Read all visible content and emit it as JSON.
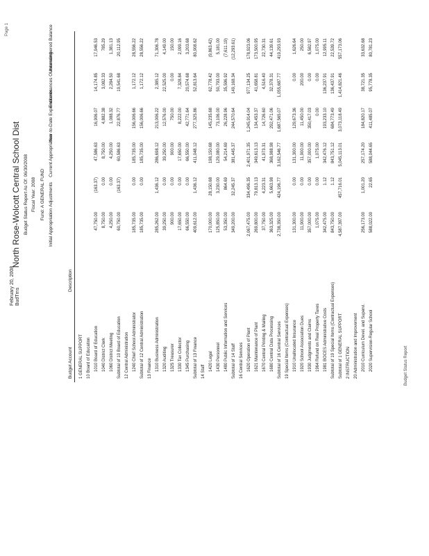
{
  "header": {
    "date": "February 20, 2008",
    "user": "BudTrns",
    "title": "North Rose-Wolcott Central School Dist",
    "subtitle": "Budget Status Report As Of: 06/30/2008",
    "fiscal_year": "Fiscal Year: 2008",
    "fund": "Fund: A GENERAL FUND",
    "page": "Page 1"
  },
  "columns": {
    "account": "Budget Account",
    "description": "Description",
    "values": [
      "Initial Appropriation",
      "Adjustments",
      "Current Appropriation",
      "Year-to-Date Expenditures",
      "Encumbrances Outstanding",
      "Unencumbered Balance"
    ]
  },
  "rows": [
    {
      "label": "1 GENERAL SUPPORT",
      "level": 0,
      "values": [
        "",
        "",
        "",
        "",
        "",
        ""
      ]
    },
    {
      "label": "10 Board of Education",
      "level": 0,
      "values": [
        "",
        "",
        "",
        "",
        "",
        ""
      ]
    },
    {
      "label": "1010 Board of Education",
      "level": 1,
      "values": [
        "47,750.00",
        "(163.37)",
        "47,586.63",
        "16,906.07",
        "14,174.85",
        "17,946.53"
      ]
    },
    {
      "label": "1040 District Clerk",
      "level": 1,
      "values": [
        "8,750.00",
        "0.00",
        "8,750.00",
        "4,882.38",
        "3,082.33",
        "785.29"
      ]
    },
    {
      "label": "1060 District Meeting",
      "level": 1,
      "values": [
        "4,250.00",
        "0.00",
        "4,250.00",
        "1,088.32",
        "2,284.50",
        "1,381.13"
      ]
    },
    {
      "label": "Subtotal of 10 Board of Education",
      "level": 0,
      "values": [
        "60,750.00",
        "(163.37)",
        "60,586.63",
        "22,876.77",
        "19,541.68",
        "20,112.95"
      ]
    },
    {
      "label": "12 Central Administration",
      "level": 0,
      "values": [
        "",
        "",
        "",
        "",
        "",
        ""
      ]
    },
    {
      "label": "1240 Chief School Administrator",
      "level": 1,
      "values": [
        "185,735.00",
        "0.00",
        "185,735.00",
        "156,006.66",
        "1,172.12",
        "28,556.22"
      ]
    },
    {
      "label": "Subtotal of 12 Central Administration",
      "level": 0,
      "values": [
        "185,735.00",
        "0.00",
        "185,735.00",
        "156,006.66",
        "1,172.12",
        "28,556.22"
      ]
    },
    {
      "label": "13 Finance",
      "level": 0,
      "values": [
        "",
        "",
        "",
        "",
        "",
        ""
      ]
    },
    {
      "label": "1310 Business Administration",
      "level": 1,
      "values": [
        "285,262.00",
        "1,436.12",
        "286,698.12",
        "213,006.22",
        "2,385.12",
        "71,306.78"
      ]
    },
    {
      "label": "1320 Auditing",
      "level": 1,
      "values": [
        "39,250.00",
        "0.00",
        "39,250.00",
        "12,576.00",
        "22,525.00",
        "4,149.00"
      ]
    },
    {
      "label": "1325 Treasurer",
      "level": 1,
      "values": [
        "900.00",
        "0.00",
        "900.00",
        "750.00",
        "0.00",
        "150.00"
      ]
    },
    {
      "label": "1330 Tax Collector",
      "level": 1,
      "values": [
        "17,650.00",
        "0.00",
        "17,650.00",
        "8,222.00",
        "7,328.84",
        "2,099.16"
      ]
    },
    {
      "label": "1345 Purchasing",
      "level": 1,
      "values": [
        "66,550.00",
        "0.00",
        "66,550.00",
        "42,771.64",
        "20,574.68",
        "3,203.68"
      ]
    },
    {
      "label": "Subtotal of 13 Finance",
      "level": 0,
      "values": [
        "409,612.00",
        "1,436.12",
        "411,048.12",
        "277,325.86",
        "52,813.64",
        "80,908.62"
      ]
    },
    {
      "label": "14 Staff",
      "level": 0,
      "values": [
        "",
        "",
        "",
        "",
        "",
        ""
      ]
    },
    {
      "label": "1420 Legal",
      "level": 1,
      "values": [
        "170,000.00",
        "28,150.68",
        "198,150.68",
        "145,235.68",
        "62,778.42",
        "(9,863.42)"
      ]
    },
    {
      "label": "1430 Personnel",
      "level": 1,
      "values": [
        "125,850.00",
        "3,230.00",
        "129,080.00",
        "73,106.00",
        "50,793.00",
        "5,181.00"
      ]
    },
    {
      "label": "1480 Public Information and Services",
      "level": 1,
      "values": [
        "53,350.00",
        "864.69",
        "54,214.69",
        "26,228.96",
        "35,596.92",
        "(7,611.19)"
      ]
    },
    {
      "label": "Subtotal of 14 Staff",
      "level": 0,
      "values": [
        "349,200.00",
        "32,245.37",
        "381,445.37",
        "244,570.64",
        "149,168.34",
        "(12,293.61)"
      ]
    },
    {
      "label": "16 Central Services",
      "level": 0,
      "values": [
        "",
        "",
        "",
        "",
        "",
        ""
      ]
    },
    {
      "label": "1620 Operation of Plant",
      "level": 1,
      "values": [
        "2,067,475.00",
        "334,496.35",
        "2,401,971.35",
        "1,245,914.04",
        "977,134.25",
        "178,923.06"
      ]
    },
    {
      "label": "1621 Maintenance of Plant",
      "level": 1,
      "values": [
        "269,800.00",
        "79,813.13",
        "349,613.13",
        "134,453.37",
        "41,658.81",
        "173,500.95"
      ]
    },
    {
      "label": "1670 Central Printing & Mailing",
      "level": 1,
      "values": [
        "37,750.00",
        "4,223.31",
        "41,973.31",
        "14,726.60",
        "4,516.40",
        "22,730.31"
      ]
    },
    {
      "label": "1680 Central Data Processing",
      "level": 1,
      "values": [
        "363,325.00",
        "5,663.98",
        "368,988.98",
        "292,471.06",
        "32,378.31",
        "44,139.61"
      ]
    },
    {
      "label": "Subtotal of 16 Central Services",
      "level": 0,
      "values": [
        "2,738,350.00",
        "424,196.77",
        "3,162,546.77",
        "1,687,565.07",
        "1,055,687.77",
        "419,293.93"
      ]
    },
    {
      "label": "19 Special Items (Contractual Expenses)",
      "level": 0,
      "values": [
        "",
        "",
        "",
        "",
        "",
        ""
      ]
    },
    {
      "label": "1910 Unallocated Insurance",
      "level": 1,
      "values": [
        "131,300.00",
        "0.00",
        "131,300.00",
        "129,673.36",
        "0.00",
        "1,626.64"
      ]
    },
    {
      "label": "1920 School Association Dues",
      "level": 1,
      "values": [
        "11,900.00",
        "0.00",
        "11,900.00",
        "11,450.00",
        "200.00",
        "250.00"
      ]
    },
    {
      "label": "1930 Judgments and Claims",
      "level": 1,
      "values": [
        "357,000.00",
        "0.00",
        "357,000.00",
        "350,417.03",
        "0.00",
        "6,582.97"
      ]
    },
    {
      "label": "1964 Refund on Real Property Taxes",
      "level": 1,
      "values": [
        "1,075.00",
        "0.00",
        "1,075.00",
        "0.00",
        "0.00",
        "1,075.00"
      ]
    },
    {
      "label": "1981 BOCES Administrative Costs",
      "level": 1,
      "values": [
        "342,475.00",
        "1.12",
        "342,476.12",
        "193,233.10",
        "136,237.91",
        "12,995.11"
      ]
    },
    {
      "label": "Subtotal of 19 Special Items (Contractual Expenses)",
      "level": 0,
      "values": [
        "843,750.00",
        "1.12",
        "843,751.12",
        "684,773.49",
        "136,437.91",
        "22,539.72"
      ]
    },
    {
      "label": "Subtotal of 1 GENERAL SUPPORT",
      "level": 0,
      "values": [
        "4,587,397.00",
        "457,716.01",
        "5,045,113.01",
        "3,073,118.49",
        "1,414,821.46",
        "557,173.06"
      ]
    },
    {
      "label": "2 INSTRUCTION",
      "level": 0,
      "values": [
        "",
        "",
        "",
        "",
        "",
        ""
      ]
    },
    {
      "label": "20 Administration and Improvement",
      "level": 0,
      "values": [
        "",
        "",
        "",
        "",
        "",
        ""
      ]
    },
    {
      "label": "2010 Curriculum Devel. and Supervi.",
      "level": 1,
      "values": [
        "256,173.00",
        "1,001.20",
        "257,174.20",
        "184,820.17",
        "38,721.35",
        "33,632.68"
      ]
    },
    {
      "label": "2020 Supervision-Regular School",
      "level": 1,
      "values": [
        "588,022.00",
        "22.65",
        "588,044.65",
        "411,485.07",
        "95,778.35",
        "80,781.23"
      ]
    }
  ],
  "footer": {
    "text": "Budget Status Report"
  }
}
